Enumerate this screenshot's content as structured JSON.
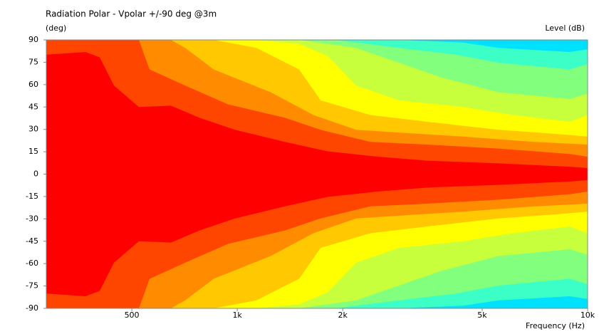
{
  "chart_data": {
    "type": "contour",
    "title": "Radiation Polar - Vpolar +/-90 deg @3m",
    "y_label": "(deg)",
    "level_label": "Level  (dB)",
    "x_label": "Frequency  (Hz)",
    "log_x": true,
    "xlim": [
      285,
      10000
    ],
    "xticks": [
      500,
      {
        "value": 1000,
        "label": "1k"
      },
      {
        "value": 2000,
        "label": "2k"
      },
      {
        "value": 5000,
        "label": "5k"
      },
      {
        "value": 10000,
        "label": "10k"
      }
    ],
    "ylim": [
      -90,
      90
    ],
    "yticks": [
      90,
      75,
      60,
      45,
      30,
      15,
      0,
      -15,
      -30,
      -45,
      -60,
      -75,
      -90
    ]
  }
}
